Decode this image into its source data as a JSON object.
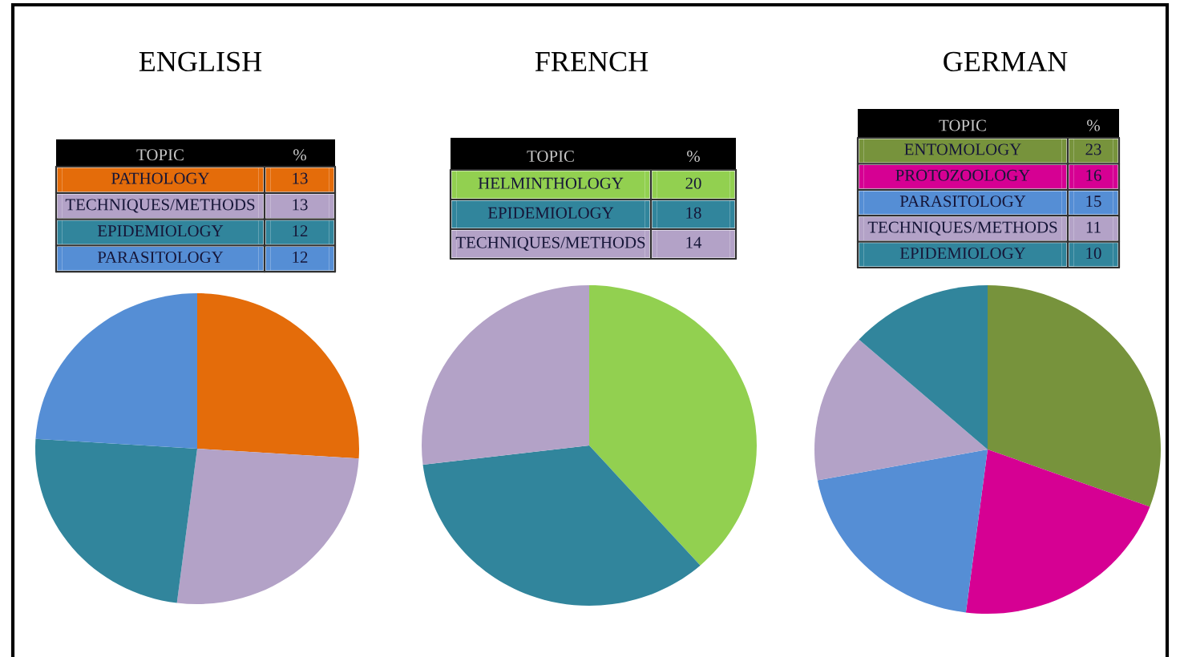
{
  "chart_data": [
    {
      "type": "pie",
      "title": "ENGLISH",
      "legend_title": "TOPIC",
      "annotations": [
        "%"
      ],
      "legend": "top",
      "data_labels": true,
      "categories": [
        "PATHOLOGY",
        "TECHNIQUES/METHODS",
        "EPIDEMIOLOGY",
        "PARASITOLOGY"
      ],
      "values": [
        13,
        13,
        12,
        12
      ],
      "colors": [
        "#e46c0a",
        "#b3a2c7",
        "#31859c",
        "#558ed5"
      ]
    },
    {
      "type": "pie",
      "title": "FRENCH",
      "legend_title": "TOPIC",
      "annotations": [
        "%"
      ],
      "legend": "top",
      "data_labels": true,
      "categories": [
        "HELMINTHOLOGY",
        "EPIDEMIOLOGY",
        "TECHNIQUES/METHODS"
      ],
      "values": [
        20,
        18,
        14
      ],
      "colors": [
        "#92d050",
        "#31859c",
        "#b3a2c7"
      ]
    },
    {
      "type": "pie",
      "title": "GERMAN",
      "legend_title": "TOPIC",
      "annotations": [
        "%"
      ],
      "legend": "top",
      "data_labels": true,
      "categories": [
        "ENTOMOLOGY",
        "PROTOZOOLOGY",
        "PARASITOLOGY",
        "TECHNIQUES/METHODS",
        "EPIDEMIOLOGY"
      ],
      "values": [
        23,
        16,
        15,
        11,
        10
      ],
      "colors": [
        "#77933c",
        "#d60093",
        "#558ed5",
        "#b3a2c7",
        "#31859c"
      ]
    }
  ]
}
